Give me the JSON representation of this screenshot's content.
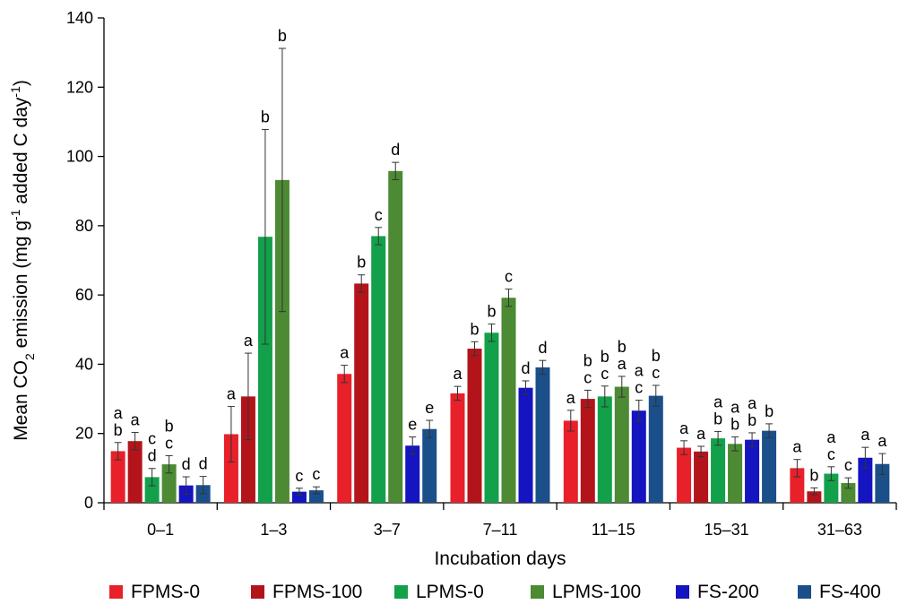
{
  "chart_data": {
    "type": "bar",
    "xlabel": "Incubation days",
    "ylabel_parts": {
      "prefix": "Mean CO",
      "sub": "2",
      "middle": " emission (mg g",
      "sup1": "-1",
      "middle2": " added C day",
      "sup2": "-1",
      "suffix": ")"
    },
    "ylim": [
      0,
      140
    ],
    "yticks": [
      "0",
      "20",
      "40",
      "60",
      "80",
      "100",
      "120",
      "140"
    ],
    "categories": [
      "0–1",
      "1–3",
      "3–7",
      "7–11",
      "11–15",
      "15–31",
      "31–63"
    ],
    "legend_position": "bottom",
    "series": [
      {
        "name": "FPMS-0",
        "color": "#e8202a",
        "values": [
          14.9,
          19.8,
          37.2,
          31.6,
          23.7,
          15.9,
          10.0
        ],
        "errors": [
          2.5,
          8.0,
          2.5,
          2.0,
          3.0,
          2.0,
          2.5
        ],
        "letters": [
          [
            "a",
            "b"
          ],
          [
            "a"
          ],
          [
            "a"
          ],
          [
            "a"
          ],
          [
            "a"
          ],
          [
            "a"
          ],
          [
            "a"
          ]
        ]
      },
      {
        "name": "FPMS-100",
        "color": "#b3141a",
        "values": [
          17.8,
          30.7,
          63.3,
          44.5,
          30.0,
          14.8,
          3.3
        ],
        "errors": [
          2.5,
          12.5,
          2.5,
          2.0,
          2.5,
          1.5,
          1.0
        ],
        "letters": [
          [
            "a"
          ],
          [
            "a"
          ],
          [
            "b"
          ],
          [
            "b"
          ],
          [
            "b",
            "c"
          ],
          [
            "a"
          ],
          [
            "b"
          ]
        ]
      },
      {
        "name": "LPMS-0",
        "color": "#13a04a",
        "values": [
          7.4,
          76.8,
          77.0,
          49.1,
          30.7,
          18.6,
          8.4
        ],
        "errors": [
          2.5,
          31.0,
          2.5,
          2.5,
          3.0,
          2.0,
          2.0
        ],
        "letters": [
          [
            "c",
            "d"
          ],
          [
            "b"
          ],
          [
            "c"
          ],
          [
            "b"
          ],
          [
            "b",
            "c"
          ],
          [
            "a",
            "b"
          ],
          [
            "a",
            "c"
          ]
        ]
      },
      {
        "name": "LPMS-100",
        "color": "#4c8a34",
        "values": [
          11.1,
          93.2,
          95.8,
          59.2,
          33.5,
          17.0,
          5.7
        ],
        "errors": [
          2.5,
          38.0,
          2.5,
          2.5,
          3.0,
          2.0,
          1.5
        ],
        "letters": [
          [
            "b",
            "c"
          ],
          [
            "b"
          ],
          [
            "d"
          ],
          [
            "c"
          ],
          [
            "b",
            "a"
          ],
          [
            "a",
            "b"
          ],
          [
            "c"
          ]
        ]
      },
      {
        "name": "FS-200",
        "color": "#1414c0",
        "values": [
          5.0,
          3.2,
          16.5,
          33.2,
          26.6,
          18.2,
          13.0
        ],
        "errors": [
          2.5,
          1.0,
          2.5,
          2.0,
          3.0,
          2.0,
          3.0
        ],
        "letters": [
          [
            "d"
          ],
          [
            "c"
          ],
          [
            "e"
          ],
          [
            "d"
          ],
          [
            "a",
            "c"
          ],
          [
            "a",
            "b"
          ],
          [
            "a"
          ]
        ]
      },
      {
        "name": "FS-400",
        "color": "#1b4f8a",
        "values": [
          5.1,
          3.6,
          21.3,
          39.1,
          30.9,
          20.8,
          11.2
        ],
        "errors": [
          2.5,
          1.0,
          2.5,
          2.0,
          3.0,
          2.0,
          3.0
        ],
        "letters": [
          [
            "d"
          ],
          [
            "c"
          ],
          [
            "e"
          ],
          [
            "d"
          ],
          [
            "b",
            "c"
          ],
          [
            "b"
          ],
          [
            "a"
          ]
        ]
      }
    ]
  }
}
